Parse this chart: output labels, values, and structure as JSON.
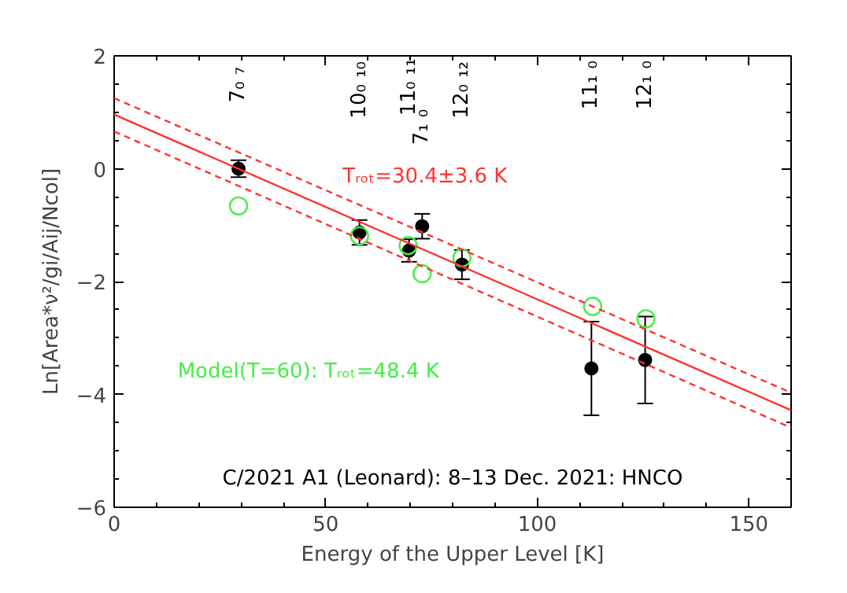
{
  "chart_data": {
    "type": "scatter",
    "xlabel": "Energy of the Upper Level [K]",
    "ylabel": "Ln[Area*ν²/gi/Aij/Ncol]",
    "xlim": [
      0,
      160
    ],
    "ylim": [
      -6,
      2
    ],
    "xticks": [
      0,
      50,
      100,
      150
    ],
    "yticks": [
      -6,
      -4,
      -2,
      0,
      2
    ],
    "grid": false,
    "series": [
      {
        "color": "#000000",
        "marker": "circle",
        "x": [
          29.4,
          58.0,
          69.7,
          72.8,
          82.2,
          112.8,
          125.5
        ],
        "values": [
          0.0,
          -1.13,
          -1.45,
          -1.02,
          -1.7,
          -3.54,
          -3.39
        ],
        "errors": [
          0.15,
          0.22,
          0.2,
          0.22,
          0.26,
          0.83,
          0.77
        ]
      },
      {
        "color": "#44ee44",
        "marker": "circle_open",
        "x": [
          29.4,
          58.0,
          69.5,
          72.8,
          82.2,
          113.1,
          125.7
        ],
        "values": [
          -0.66,
          -1.19,
          -1.36,
          -1.86,
          -1.58,
          -2.44,
          -2.66
        ]
      },
      {
        "type": "line",
        "color": "#ff3333",
        "line_style": "solid",
        "x": [
          0,
          160
        ],
        "values": [
          0.96,
          -4.28
        ]
      },
      {
        "type": "line",
        "color": "#ff3333",
        "line_style": "dashed",
        "x": [
          0,
          160
        ],
        "values": [
          1.25,
          -3.97
        ]
      },
      {
        "type": "line",
        "color": "#ff3333",
        "line_style": "dashed",
        "x": [
          0,
          160
        ],
        "values": [
          0.66,
          -4.59
        ]
      }
    ],
    "annotations": [
      "7₀ ₇",
      "10₀ ₁₀",
      "11₀ ₁₁",
      "7₁ ₀",
      "12₀ ₁₂",
      "11₁ ₀",
      "12₁ ₀",
      "Tᵣₒₜ=30.4±3.6 K",
      "Model(T=60): Tᵣₒₜ=48.4 K",
      "C/2021 A1 (Leonard): 8–13 Dec. 2021: HNCO"
    ]
  }
}
